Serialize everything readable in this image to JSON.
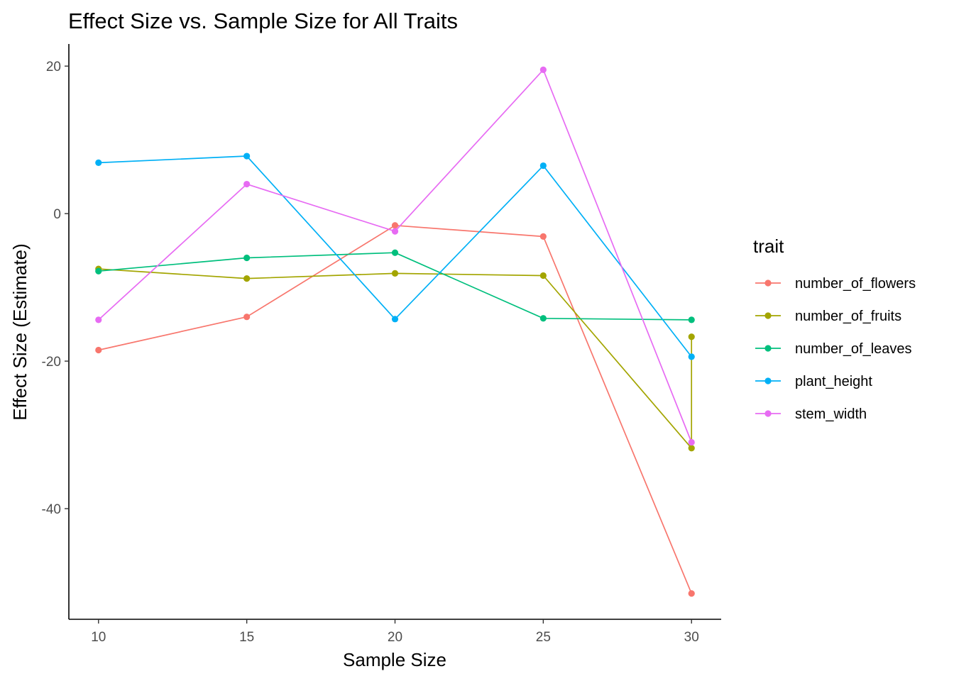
{
  "chart_data": {
    "type": "line",
    "title": "Effect Size vs. Sample Size for All Traits",
    "xlabel": "Sample Size",
    "ylabel": "Effect Size (Estimate)",
    "x_ticks": [
      10,
      15,
      20,
      25,
      30
    ],
    "y_ticks": [
      20,
      0,
      -20,
      -40
    ],
    "xlim": [
      9,
      31
    ],
    "ylim": [
      -55,
      23
    ],
    "grid": false,
    "legend": {
      "title": "trait",
      "position": "right"
    },
    "series": [
      {
        "name": "number_of_flowers",
        "color": "#F8766D",
        "points": [
          [
            10,
            -18.5
          ],
          [
            15,
            -14.0
          ],
          [
            20,
            -1.6
          ],
          [
            25,
            -3.1
          ],
          [
            30,
            -51.5
          ]
        ]
      },
      {
        "name": "number_of_fruits",
        "color": "#A3A500",
        "points": [
          [
            10,
            -7.5
          ],
          [
            15,
            -8.8
          ],
          [
            20,
            -8.1
          ],
          [
            25,
            -8.4
          ],
          [
            30,
            -31.8
          ],
          [
            30,
            -16.7
          ]
        ]
      },
      {
        "name": "number_of_leaves",
        "color": "#00BF7D",
        "points": [
          [
            10,
            -7.8
          ],
          [
            15,
            -6.0
          ],
          [
            20,
            -5.3
          ],
          [
            25,
            -14.2
          ],
          [
            30,
            -14.4
          ]
        ]
      },
      {
        "name": "plant_height",
        "color": "#00B0F6",
        "points": [
          [
            10,
            6.9
          ],
          [
            15,
            7.8
          ],
          [
            20,
            -14.3
          ],
          [
            25,
            6.5
          ],
          [
            30,
            -19.4
          ]
        ]
      },
      {
        "name": "stem_width",
        "color": "#E76BF3",
        "points": [
          [
            10,
            -14.4
          ],
          [
            15,
            4.0
          ],
          [
            20,
            -2.4
          ],
          [
            25,
            19.5
          ],
          [
            30,
            -31.0
          ]
        ]
      }
    ]
  }
}
